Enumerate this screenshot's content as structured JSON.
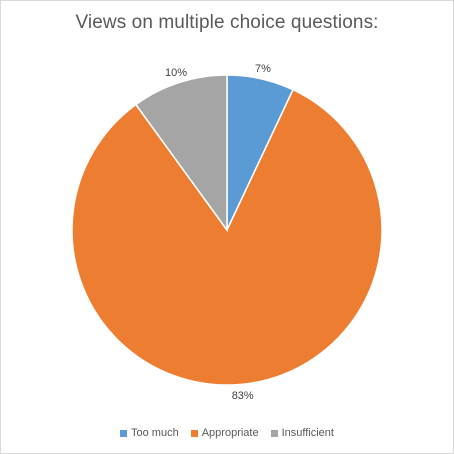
{
  "chart_data": {
    "type": "pie",
    "title": "Views on multiple choice questions:",
    "categories": [
      "Too much",
      "Appropriate",
      "Insufficient"
    ],
    "values": [
      7,
      83,
      10
    ],
    "data_labels": [
      "7%",
      "83%",
      "10%"
    ],
    "colors": [
      "#5b9bd5",
      "#ed7d31",
      "#a5a5a5"
    ],
    "start_angle_deg": 0,
    "direction": "clockwise",
    "legend_position": "bottom"
  }
}
